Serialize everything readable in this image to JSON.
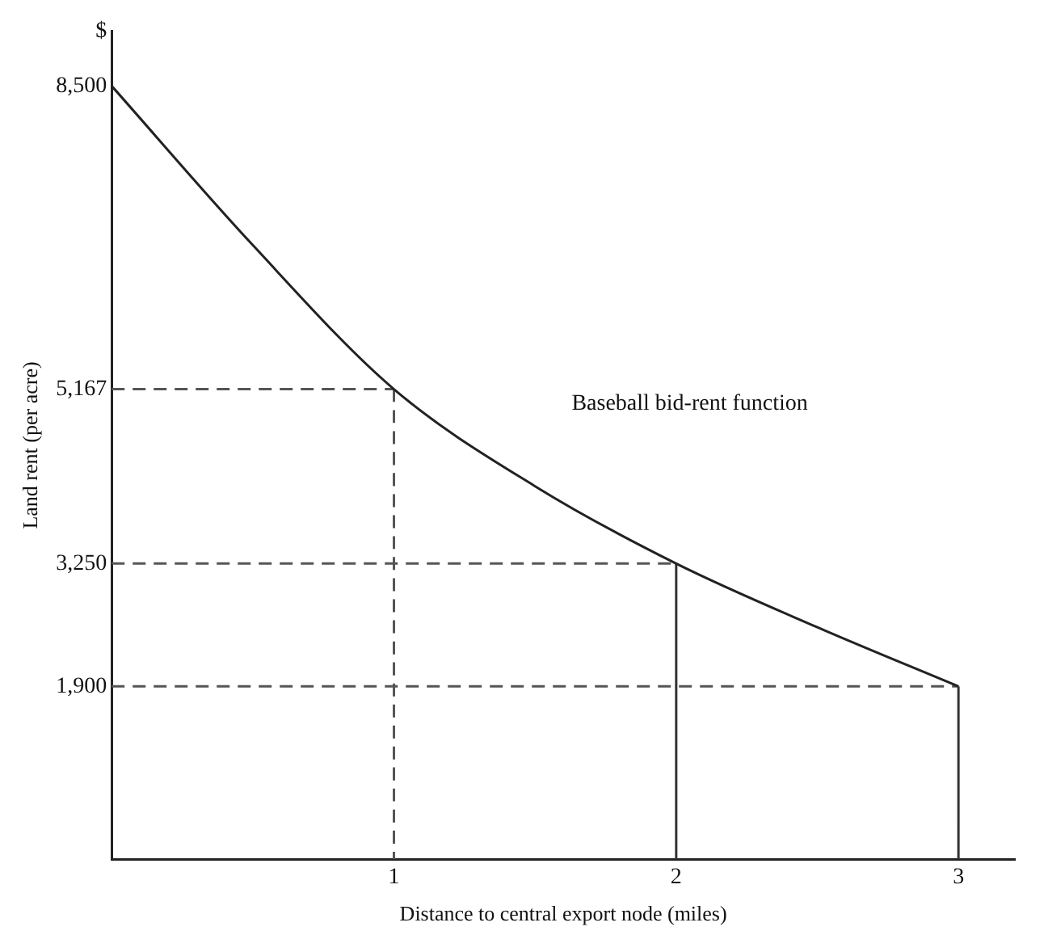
{
  "chart_data": {
    "type": "line",
    "xlabel": "Distance to central export node (miles)",
    "ylabel": "Land rent (per acre)",
    "xlim": [
      0,
      3.2
    ],
    "xticks": [
      1,
      2,
      3
    ],
    "ylim": [
      0,
      9100
    ],
    "yticks": [
      {
        "value": 1900,
        "label": "1,900"
      },
      {
        "value": 3250,
        "label": "3,250"
      },
      {
        "value": 5167,
        "label": "5,167"
      },
      {
        "value": 8500,
        "label": "8,500"
      },
      {
        "value": 9100,
        "label": "$"
      }
    ],
    "grid": false,
    "legend": false,
    "marker": "none",
    "series": [
      {
        "x": [
          0,
          0.5,
          1,
          1.5,
          2,
          2.5,
          3
        ],
        "values": [
          8500,
          6750,
          5167,
          4100,
          3250,
          2550,
          1900
        ],
        "color": "#222222",
        "line_style": "solid"
      },
      {
        "x": [
          0,
          1
        ],
        "values": [
          5167,
          5167
        ],
        "color": "#555555",
        "line_style": "dashed"
      },
      {
        "x": [
          1,
          1
        ],
        "values": [
          5167,
          0
        ],
        "color": "#555555",
        "line_style": "dashed"
      },
      {
        "x": [
          0,
          2
        ],
        "values": [
          3250,
          3250
        ],
        "color": "#555555",
        "line_style": "dashed"
      },
      {
        "x": [
          2,
          2
        ],
        "values": [
          3250,
          0
        ],
        "color": "#333333",
        "line_style": "solid"
      },
      {
        "x": [
          0,
          3
        ],
        "values": [
          1900,
          1900
        ],
        "color": "#555555",
        "line_style": "dashed"
      },
      {
        "x": [
          3,
          3
        ],
        "values": [
          1900,
          0
        ],
        "color": "#333333",
        "line_style": "solid"
      }
    ],
    "annotations": [
      "Baseball bid-rent function"
    ]
  }
}
